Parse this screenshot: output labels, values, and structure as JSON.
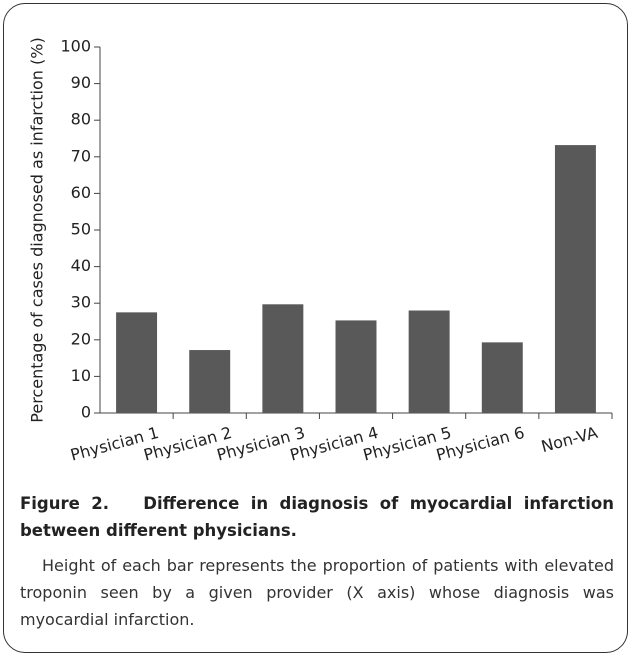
{
  "chart_data": {
    "type": "bar",
    "y_label": "Percentage of cases diagnosed as infarction (%)",
    "categories": [
      "Physician 1",
      "Physician 2",
      "Physician 3",
      "Physician 4",
      "Physician 5",
      "Physician 6",
      "Non-VA"
    ],
    "values": [
      27.5,
      17.2,
      29.7,
      25.3,
      28,
      19.3,
      73.2
    ],
    "color": "#595959",
    "ylim": [
      0,
      100
    ],
    "yticks": [
      0,
      10,
      20,
      30,
      40,
      50,
      60,
      70,
      80,
      90,
      100
    ],
    "grid": false
  },
  "caption": {
    "title": "Figure 2.   Difference in diagnosis of myocardial infarction between different physicians.",
    "text": "Height of each bar represents the proportion of patients with elevated troponin seen by a given provider (X axis) whose diagnosis was myocardial infarction."
  }
}
